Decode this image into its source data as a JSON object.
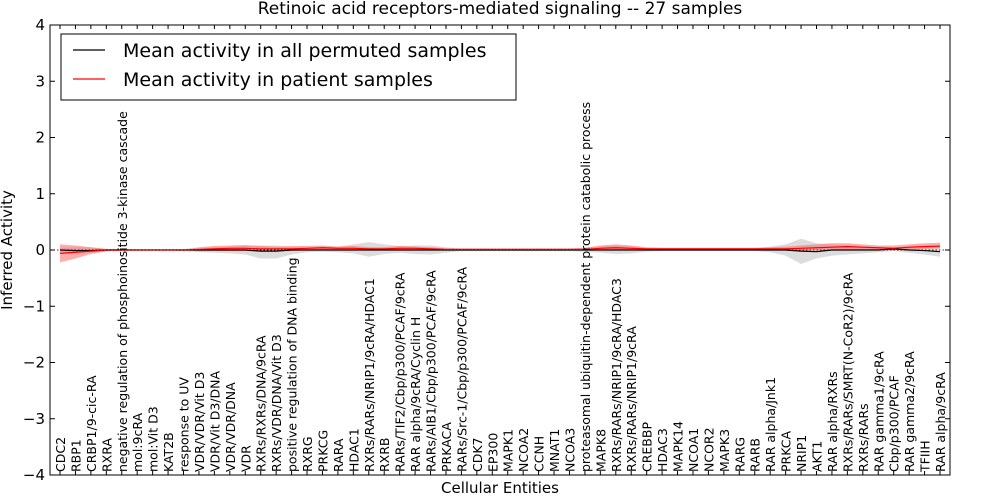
{
  "colors": {
    "permuted": "#000000",
    "patient": "#ff0000",
    "permuted_band": "#c0c0c0",
    "patient_band": "#ff6666",
    "axis": "#000000",
    "background": "#ffffff"
  },
  "chart_data": {
    "type": "line",
    "title": "Retinoic acid receptors-mediated signaling -- 27 samples",
    "xlabel": "Cellular Entities",
    "ylabel": "Inferred Activity",
    "ylim": [
      -4,
      4
    ],
    "yticks": [
      -4,
      -3,
      -2,
      -1,
      0,
      1,
      2,
      3,
      4
    ],
    "ytick_labels": [
      "−4",
      "−3",
      "−2",
      "−1",
      "0",
      "1",
      "2",
      "3",
      "4"
    ],
    "legend_position": "top-left",
    "categories": [
      "CDC2",
      "RBP1",
      "CRBP1/9-cic-RA",
      "RXRA",
      "negative regulation of phosphoinositide 3-kinase cascade",
      "mol:9cRA",
      "mol:Vit D3",
      "KAT2B",
      "response to UV",
      "VDR/VDR/Vit D3",
      "VDR/Vit D3/DNA",
      "VDR/VDR/DNA",
      "VDR",
      "RXRs/RXRs/DNA/9cRA",
      "RXRs/VDR/DNA/Vit D3",
      "positive regulation of DNA binding",
      "RXRG",
      "PRKCG",
      "RARA",
      "HDAC1",
      "RXRs/RARs/NRIP1/9cRA/HDAC1",
      "RXRB",
      "RARs/TIF2/Cbp/p300/PCAF/9cRA",
      "RAR alpha/9cRA/Cyclin H",
      "RARs/AIB1/Cbp/p300/PCAF/9cRA",
      "PRKACA",
      "RARs/Src-1/Cbp/p300/PCAF/9cRA",
      "CDK7",
      "EP300",
      "MAPK1",
      "NCOA2",
      "CCNH",
      "MNAT1",
      "NCOA3",
      "proteasomal ubiquitin-dependent protein catabolic process",
      "MAPK8",
      "RXRs/RARs/NRIP1/9cRA/HDAC3",
      "RXRs/RARs/NRIP1/9cRA",
      "CREBBP",
      "HDAC3",
      "MAPK14",
      "NCOA1",
      "NCOR2",
      "MAPK3",
      "RARG",
      "RARB",
      "RAR alpha/Jnk1",
      "PRKCA",
      "NRIP1",
      "AKT1",
      "RAR alpha/RXRs",
      "RXRs/RARs/SMRT(N-CoR2)/9cRA",
      "RXRs/RARs",
      "RAR gamma1/9cRA",
      "Cbp/p300/PCAF",
      "RAR gamma2/9cRA",
      "TFIIH",
      "RAR alpha/9cRA"
    ],
    "series": [
      {
        "name": "Mean activity in all permuted samples",
        "color": "#000000",
        "values": [
          0.0,
          -0.01,
          -0.01,
          0.0,
          0.0,
          0.0,
          0.0,
          0.0,
          0.0,
          0.0,
          0.0,
          0.0,
          0.0,
          -0.02,
          -0.02,
          0.0,
          0.0,
          0.0,
          0.0,
          0.0,
          0.0,
          0.0,
          0.0,
          0.0,
          0.0,
          0.0,
          0.0,
          0.0,
          0.0,
          0.0,
          0.0,
          0.0,
          0.0,
          0.0,
          0.0,
          0.0,
          0.0,
          0.0,
          0.0,
          0.0,
          0.0,
          0.0,
          0.0,
          0.0,
          0.0,
          0.0,
          0.0,
          0.0,
          -0.02,
          -0.03,
          0.0,
          0.0,
          0.0,
          0.0,
          0.02,
          0.0,
          -0.01,
          -0.03
        ],
        "lower": [
          -0.03,
          -0.05,
          -0.05,
          -0.02,
          -0.02,
          -0.01,
          -0.01,
          -0.01,
          -0.02,
          -0.04,
          -0.05,
          -0.06,
          -0.08,
          -0.15,
          -0.15,
          -0.08,
          -0.04,
          -0.03,
          -0.04,
          -0.06,
          -0.12,
          -0.07,
          -0.05,
          -0.07,
          -0.08,
          -0.05,
          -0.02,
          -0.02,
          -0.02,
          -0.02,
          -0.02,
          -0.02,
          -0.02,
          -0.02,
          -0.03,
          -0.05,
          -0.07,
          -0.06,
          -0.03,
          -0.02,
          -0.02,
          -0.02,
          -0.02,
          -0.02,
          -0.02,
          -0.02,
          -0.04,
          -0.1,
          -0.25,
          -0.15,
          -0.1,
          -0.08,
          -0.06,
          -0.04,
          -0.02,
          -0.05,
          -0.08,
          -0.12
        ],
        "upper": [
          0.04,
          0.05,
          0.05,
          0.02,
          0.02,
          0.01,
          0.01,
          0.01,
          0.02,
          0.03,
          0.05,
          0.06,
          0.07,
          0.08,
          0.08,
          0.05,
          0.04,
          0.05,
          0.06,
          0.1,
          0.14,
          0.1,
          0.07,
          0.08,
          0.08,
          0.05,
          0.02,
          0.02,
          0.02,
          0.02,
          0.02,
          0.02,
          0.02,
          0.02,
          0.04,
          0.06,
          0.08,
          0.06,
          0.03,
          0.02,
          0.02,
          0.02,
          0.02,
          0.02,
          0.02,
          0.03,
          0.06,
          0.1,
          0.2,
          0.12,
          0.1,
          0.08,
          0.06,
          0.04,
          0.05,
          0.06,
          0.07,
          0.08
        ]
      },
      {
        "name": "Mean activity in patient samples",
        "color": "#ff0000",
        "values": [
          -0.06,
          -0.04,
          -0.02,
          0.0,
          0.0,
          0.0,
          0.0,
          0.0,
          0.0,
          0.01,
          0.02,
          0.03,
          0.03,
          0.02,
          0.02,
          0.02,
          0.03,
          0.04,
          0.03,
          0.03,
          0.02,
          0.02,
          0.03,
          0.03,
          0.02,
          0.01,
          0.01,
          0.01,
          0.01,
          0.01,
          0.01,
          0.01,
          0.01,
          0.01,
          0.01,
          0.03,
          0.04,
          0.03,
          0.02,
          0.02,
          0.02,
          0.02,
          0.02,
          0.02,
          0.02,
          0.02,
          0.02,
          0.02,
          0.03,
          0.04,
          0.05,
          0.06,
          0.05,
          0.04,
          0.03,
          0.05,
          0.06,
          0.07
        ],
        "lower": [
          -0.22,
          -0.15,
          -0.07,
          -0.02,
          -0.01,
          -0.01,
          -0.01,
          -0.01,
          -0.01,
          -0.02,
          -0.02,
          -0.02,
          -0.02,
          -0.02,
          -0.02,
          -0.02,
          0.0,
          0.01,
          0.0,
          0.0,
          -0.01,
          -0.01,
          0.0,
          0.0,
          -0.01,
          -0.01,
          -0.01,
          -0.01,
          -0.01,
          -0.01,
          -0.01,
          -0.01,
          -0.01,
          -0.01,
          -0.01,
          -0.01,
          -0.01,
          -0.01,
          -0.01,
          -0.01,
          -0.01,
          -0.01,
          -0.01,
          -0.01,
          -0.01,
          -0.01,
          -0.01,
          -0.01,
          -0.01,
          -0.01,
          -0.01,
          0.0,
          0.0,
          0.0,
          0.0,
          0.01,
          0.02,
          0.03
        ],
        "upper": [
          0.1,
          0.08,
          0.05,
          0.02,
          0.01,
          0.01,
          0.01,
          0.01,
          0.01,
          0.05,
          0.07,
          0.08,
          0.09,
          0.07,
          0.06,
          0.07,
          0.07,
          0.08,
          0.06,
          0.07,
          0.05,
          0.05,
          0.07,
          0.06,
          0.05,
          0.03,
          0.03,
          0.03,
          0.03,
          0.03,
          0.03,
          0.03,
          0.03,
          0.03,
          0.04,
          0.08,
          0.1,
          0.08,
          0.05,
          0.04,
          0.04,
          0.04,
          0.04,
          0.04,
          0.04,
          0.04,
          0.05,
          0.06,
          0.08,
          0.1,
          0.12,
          0.12,
          0.1,
          0.08,
          0.08,
          0.1,
          0.12,
          0.13
        ]
      }
    ]
  }
}
